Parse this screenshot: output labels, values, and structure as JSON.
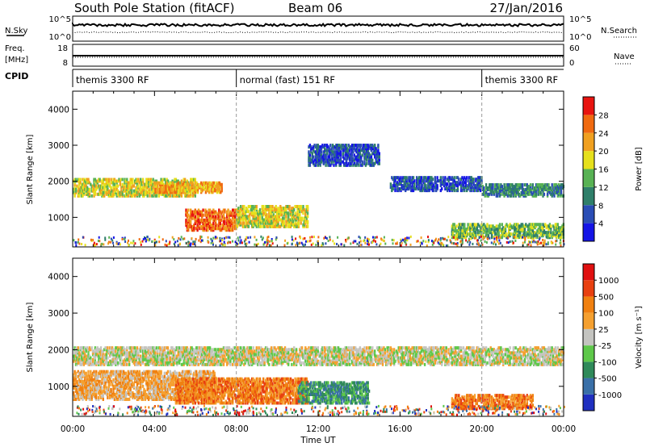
{
  "header": {
    "title": "South Pole Station (fitACF)",
    "beam": "Beam 06",
    "date": "27/Jan/2016"
  },
  "noise_panel": {
    "left_label": "N.Sky",
    "right_label": "N.Search",
    "left_ticks": [
      "10^5",
      "10^0"
    ],
    "right_ticks": [
      "10^5",
      "10^0"
    ]
  },
  "freq_panel": {
    "left_label_1": "Freq.",
    "left_label_2": "[MHz]",
    "left_ticks": [
      "18",
      "8"
    ],
    "right_label": "Nave",
    "right_ticks": [
      "60",
      "0"
    ]
  },
  "cpid": {
    "label": "CPID",
    "modes": [
      {
        "name": "themis 3300 RF",
        "start_hour": 0
      },
      {
        "name": "normal (fast) 151 RF",
        "start_hour": 8
      },
      {
        "name": "themis 3300 RF",
        "start_hour": 20
      }
    ]
  },
  "x_axis": {
    "label": "Time UT",
    "ticks": [
      "00:00",
      "04:00",
      "08:00",
      "12:00",
      "16:00",
      "20:00",
      "00:00"
    ]
  },
  "chart_data": [
    {
      "type": "heatmap",
      "name": "power",
      "ylabel": "Slant Range [km]",
      "ylim": [
        180,
        4500
      ],
      "yticks": [
        "1000",
        "2000",
        "3000",
        "4000"
      ],
      "colorbar_label": "Power [dB]",
      "colorbar_ticks": [
        "4",
        "8",
        "12",
        "16",
        "20",
        "24",
        "28"
      ],
      "colors": [
        "#1414e6",
        "#2a4db5",
        "#2f7f6a",
        "#58b254",
        "#e6e01c",
        "#f0a020",
        "#f06a10",
        "#e81410"
      ],
      "bands": [
        {
          "t0": 0.0,
          "t1": 6.0,
          "r0": 1550,
          "r1": 2050,
          "level": 4
        },
        {
          "t0": 4.0,
          "t1": 7.3,
          "r0": 1650,
          "r1": 1950,
          "level": 5
        },
        {
          "t0": 5.5,
          "t1": 8.0,
          "r0": 600,
          "r1": 1200,
          "level": 6
        },
        {
          "t0": 8.0,
          "t1": 11.5,
          "r0": 700,
          "r1": 1300,
          "level": 4
        },
        {
          "t0": 11.5,
          "t1": 15.0,
          "r0": 2400,
          "r1": 3000,
          "level": 1
        },
        {
          "t0": 15.5,
          "t1": 20.0,
          "r0": 1700,
          "r1": 2100,
          "level": 1
        },
        {
          "t0": 20.0,
          "t1": 24.0,
          "r0": 1550,
          "r1": 1900,
          "level": 2
        },
        {
          "t0": 18.5,
          "t1": 24.0,
          "r0": 400,
          "r1": 800,
          "level": 3
        }
      ]
    },
    {
      "type": "heatmap",
      "name": "velocity",
      "ylabel": "Slant Range [km]",
      "ylim": [
        180,
        4500
      ],
      "yticks": [
        "1000",
        "2000",
        "3000",
        "4000"
      ],
      "colorbar_label": "Velocity [m s⁻¹]",
      "colorbar_ticks": [
        "1000",
        "500",
        "100",
        "25",
        "-25",
        "-100",
        "-500",
        "-1000"
      ],
      "colors": [
        "#2030c0",
        "#3a70a8",
        "#2f8a5a",
        "#5ec84a",
        "#c4c4c0",
        "#f5a030",
        "#f08010",
        "#e84010",
        "#e01010"
      ],
      "bands": [
        {
          "t0": 0.0,
          "t1": 24.0,
          "r0": 1550,
          "r1": 2050,
          "level": 4
        },
        {
          "t0": 0.0,
          "t1": 7.0,
          "r0": 600,
          "r1": 1400,
          "level": 5
        },
        {
          "t0": 5.0,
          "t1": 11.5,
          "r0": 500,
          "r1": 1200,
          "level": 6
        },
        {
          "t0": 11.0,
          "t1": 14.5,
          "r0": 500,
          "r1": 1100,
          "level": 2
        },
        {
          "t0": 18.5,
          "t1": 22.5,
          "r0": 350,
          "r1": 750,
          "level": 6
        }
      ]
    }
  ]
}
